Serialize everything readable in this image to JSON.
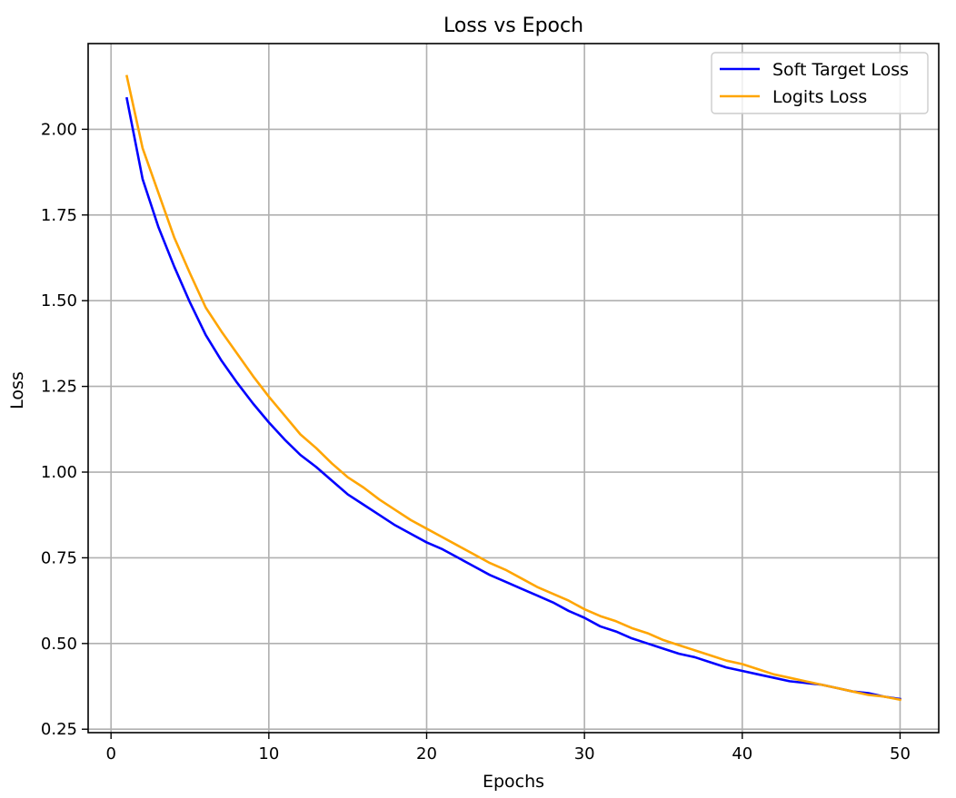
{
  "chart_data": {
    "type": "line",
    "title": "Loss vs Epoch",
    "xlabel": "Epochs",
    "ylabel": "Loss",
    "xlim": [
      -1.45,
      52.45
    ],
    "ylim": [
      0.24,
      2.25
    ],
    "xticks": [
      0,
      10,
      20,
      30,
      40,
      50
    ],
    "xtick_labels": [
      "0",
      "10",
      "20",
      "30",
      "40",
      "50"
    ],
    "yticks": [
      0.25,
      0.5,
      0.75,
      1.0,
      1.25,
      1.5,
      1.75,
      2.0
    ],
    "ytick_labels": [
      "0.25",
      "0.50",
      "0.75",
      "1.00",
      "1.25",
      "1.50",
      "1.75",
      "2.00"
    ],
    "grid": true,
    "legend_position": "top-right",
    "x": [
      1,
      2,
      3,
      4,
      5,
      6,
      7,
      8,
      9,
      10,
      11,
      12,
      13,
      14,
      15,
      16,
      17,
      18,
      19,
      20,
      21,
      22,
      23,
      24,
      25,
      26,
      27,
      28,
      29,
      30,
      31,
      32,
      33,
      34,
      35,
      36,
      37,
      38,
      39,
      40,
      41,
      42,
      43,
      44,
      45,
      46,
      47,
      48,
      49,
      50
    ],
    "series": [
      {
        "name": "Soft Target Loss",
        "color": "#0000ff",
        "values": [
          2.09,
          1.855,
          1.715,
          1.6,
          1.495,
          1.4,
          1.325,
          1.26,
          1.2,
          1.145,
          1.095,
          1.05,
          1.015,
          0.975,
          0.935,
          0.905,
          0.875,
          0.845,
          0.82,
          0.795,
          0.775,
          0.75,
          0.725,
          0.7,
          0.68,
          0.66,
          0.64,
          0.62,
          0.595,
          0.575,
          0.55,
          0.535,
          0.515,
          0.5,
          0.485,
          0.47,
          0.46,
          0.445,
          0.43,
          0.42,
          0.41,
          0.4,
          0.39,
          0.385,
          0.38,
          0.37,
          0.36,
          0.355,
          0.345,
          0.338
        ]
      },
      {
        "name": "Logits Loss",
        "color": "#ffa500",
        "values": [
          2.155,
          1.945,
          1.815,
          1.685,
          1.58,
          1.48,
          1.41,
          1.345,
          1.28,
          1.22,
          1.165,
          1.11,
          1.07,
          1.025,
          0.985,
          0.955,
          0.92,
          0.89,
          0.86,
          0.835,
          0.81,
          0.785,
          0.76,
          0.735,
          0.715,
          0.69,
          0.665,
          0.645,
          0.625,
          0.6,
          0.58,
          0.565,
          0.545,
          0.53,
          0.51,
          0.495,
          0.48,
          0.465,
          0.45,
          0.44,
          0.425,
          0.41,
          0.4,
          0.39,
          0.38,
          0.37,
          0.36,
          0.35,
          0.345,
          0.336
        ]
      }
    ]
  }
}
